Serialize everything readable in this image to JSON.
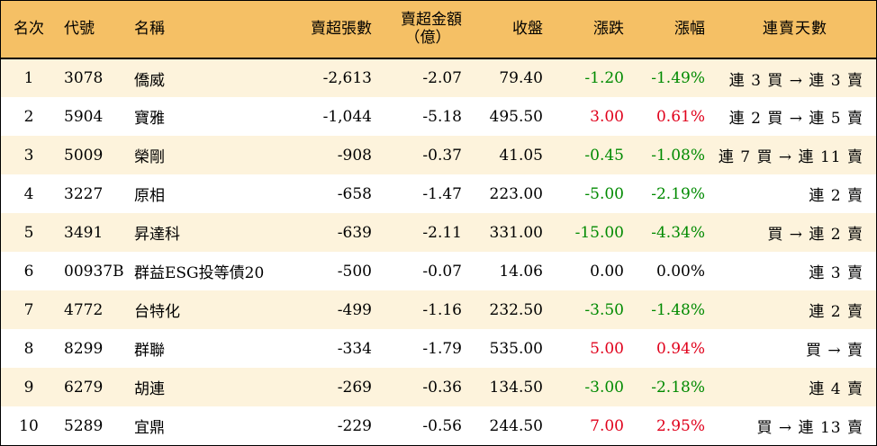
{
  "headers": {
    "rank": "名次",
    "code": "代號",
    "name": "名稱",
    "net_sell_lots": "賣超張數",
    "net_sell_amount_line1": "賣超金額",
    "net_sell_amount_line2": "（億）",
    "close": "收盤",
    "change": "漲跌",
    "change_pct": "漲幅",
    "streak": "連賣天數"
  },
  "colors": {
    "header_bg": "#f5c065",
    "odd_row_bg": "#fdf3dc",
    "up": "#e0001b",
    "down": "#008a00"
  },
  "rows": [
    {
      "rank": "1",
      "code": "3078",
      "name": "僑威",
      "lots": "-2,613",
      "amount": "-2.07",
      "close": "79.40",
      "change": "-1.20",
      "pct": "-1.49%",
      "streak": "連 3 買 → 連 3 賣",
      "dir": "down"
    },
    {
      "rank": "2",
      "code": "5904",
      "name": "寶雅",
      "lots": "-1,044",
      "amount": "-5.18",
      "close": "495.50",
      "change": "3.00",
      "pct": "0.61%",
      "streak": "連 2 買 → 連 5 賣",
      "dir": "up"
    },
    {
      "rank": "3",
      "code": "5009",
      "name": "榮剛",
      "lots": "-908",
      "amount": "-0.37",
      "close": "41.05",
      "change": "-0.45",
      "pct": "-1.08%",
      "streak": "連 7 買 → 連 11 賣",
      "dir": "down"
    },
    {
      "rank": "4",
      "code": "3227",
      "name": "原相",
      "lots": "-658",
      "amount": "-1.47",
      "close": "223.00",
      "change": "-5.00",
      "pct": "-2.19%",
      "streak": "連 2 賣",
      "dir": "down"
    },
    {
      "rank": "5",
      "code": "3491",
      "name": "昇達科",
      "lots": "-639",
      "amount": "-2.11",
      "close": "331.00",
      "change": "-15.00",
      "pct": "-4.34%",
      "streak": "買 → 連 2 賣",
      "dir": "down"
    },
    {
      "rank": "6",
      "code": "00937B",
      "name": "群益ESG投等債20",
      "lots": "-500",
      "amount": "-0.07",
      "close": "14.06",
      "change": "0.00",
      "pct": "0.00%",
      "streak": "連 3 賣",
      "dir": "flat"
    },
    {
      "rank": "7",
      "code": "4772",
      "name": "台特化",
      "lots": "-499",
      "amount": "-1.16",
      "close": "232.50",
      "change": "-3.50",
      "pct": "-1.48%",
      "streak": "連 2 賣",
      "dir": "down"
    },
    {
      "rank": "8",
      "code": "8299",
      "name": "群聯",
      "lots": "-334",
      "amount": "-1.79",
      "close": "535.00",
      "change": "5.00",
      "pct": "0.94%",
      "streak": "買 → 賣",
      "dir": "up"
    },
    {
      "rank": "9",
      "code": "6279",
      "name": "胡連",
      "lots": "-269",
      "amount": "-0.36",
      "close": "134.50",
      "change": "-3.00",
      "pct": "-2.18%",
      "streak": "連 4 賣",
      "dir": "down"
    },
    {
      "rank": "10",
      "code": "5289",
      "name": "宜鼎",
      "lots": "-229",
      "amount": "-0.56",
      "close": "244.50",
      "change": "7.00",
      "pct": "2.95%",
      "streak": "買 → 連 13 賣",
      "dir": "up"
    }
  ]
}
